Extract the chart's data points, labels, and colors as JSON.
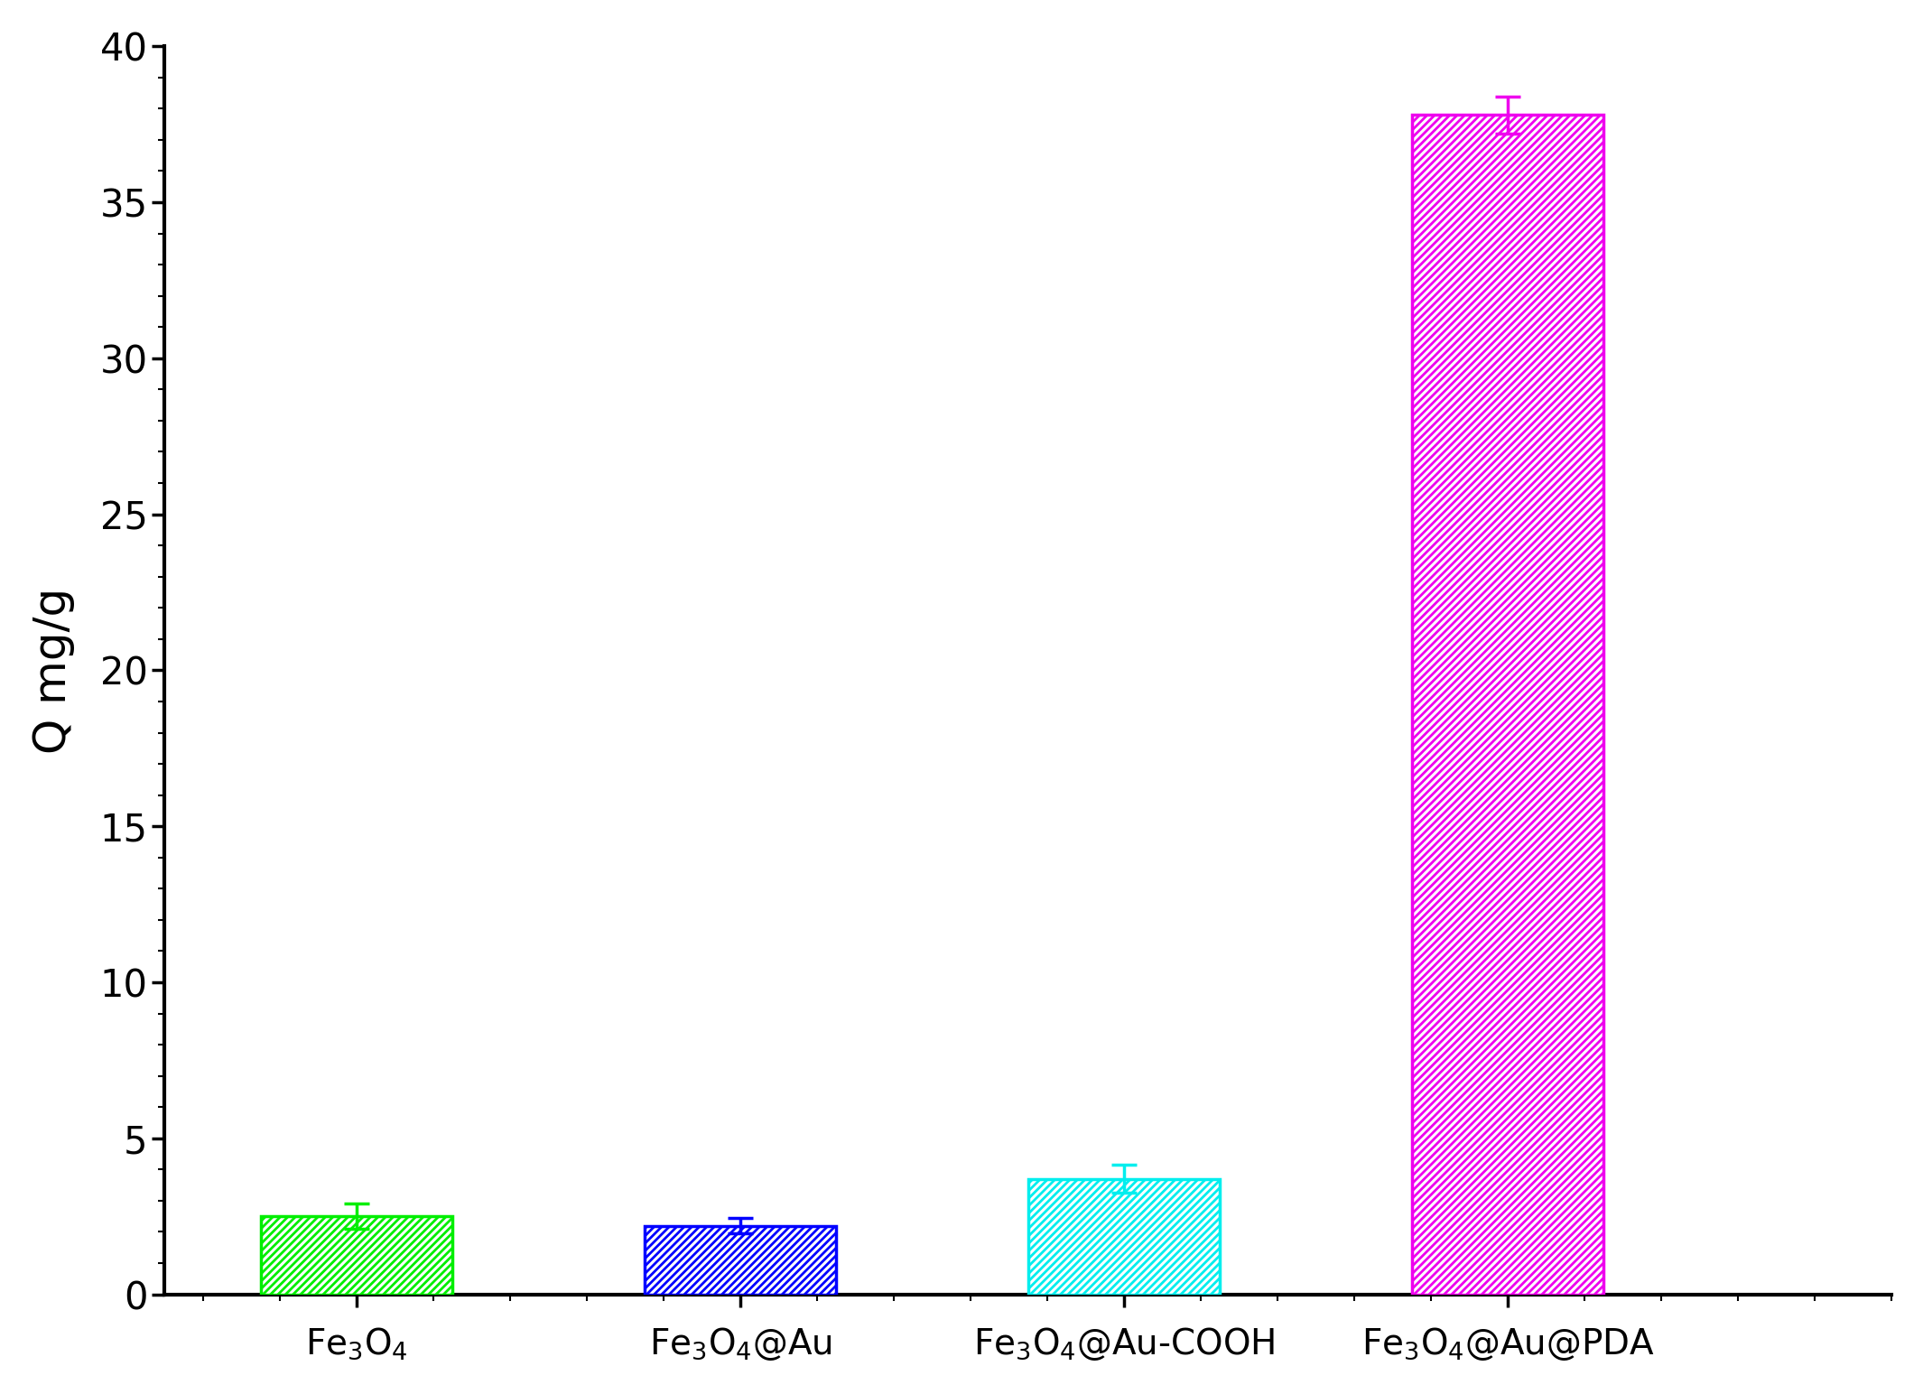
{
  "categories_latex": [
    "Fe$_3$O$_4$",
    "Fe$_3$O$_4$@Au",
    "Fe$_3$O$_4$@Au-COOH",
    "Fe$_3$O$_4$@Au@PDA"
  ],
  "values": [
    2.5,
    2.2,
    3.7,
    37.8
  ],
  "errors": [
    0.4,
    0.25,
    0.45,
    0.6
  ],
  "colors": [
    "#00EE00",
    "#0000FF",
    "#00EEEE",
    "#EE00EE"
  ],
  "ylabel": "Q mg/g",
  "ylim": [
    0,
    40
  ],
  "yticks": [
    0,
    5,
    10,
    15,
    20,
    25,
    30,
    35,
    40
  ],
  "bar_width": 0.5,
  "hatch": "////",
  "background_color": "#FFFFFF",
  "ylabel_fontsize": 36,
  "tick_fontsize": 30,
  "xlabel_fontsize": 28,
  "figure_width": 21.3,
  "figure_height": 15.44,
  "dpi": 100,
  "error_capsize": 10,
  "error_linewidth": 2.5,
  "spine_linewidth": 3.0,
  "x_positions": [
    0.5,
    1.5,
    2.5,
    3.5
  ],
  "xlim": [
    0,
    4.5
  ]
}
